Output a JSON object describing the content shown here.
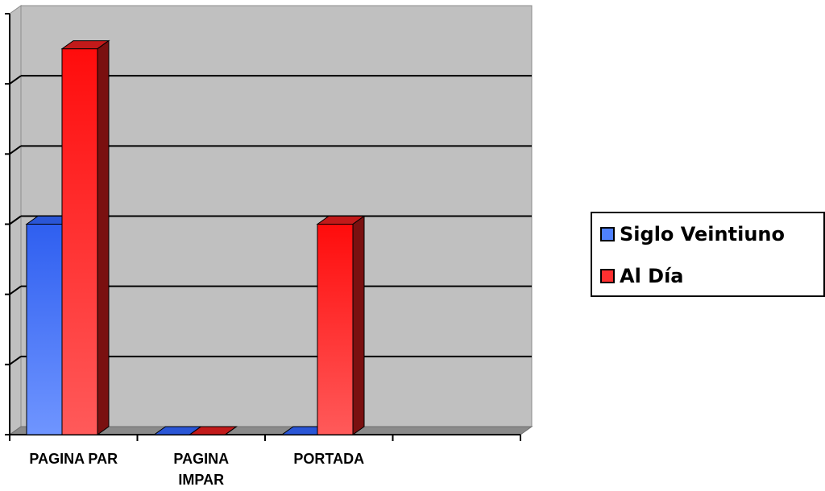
{
  "chart_data": {
    "type": "bar",
    "style": "3d",
    "categories": [
      "PAGINA PAR",
      "PAGINA IMPAR",
      "PORTADA",
      ""
    ],
    "category_labels": [
      [
        "PAGINA PAR"
      ],
      [
        "PAGINA",
        "IMPAR"
      ],
      [
        "PORTADA"
      ],
      []
    ],
    "series": [
      {
        "name": "Siglo Veintiuno",
        "values": [
          3,
          0,
          0,
          0
        ],
        "color": "#4f81ff"
      },
      {
        "name": "Al Día",
        "values": [
          5.5,
          0,
          3,
          0
        ],
        "color": "#ff2222"
      }
    ],
    "ylim": [
      0,
      6
    ],
    "y_tick_count": 6,
    "grid": true,
    "legend": "right"
  }
}
